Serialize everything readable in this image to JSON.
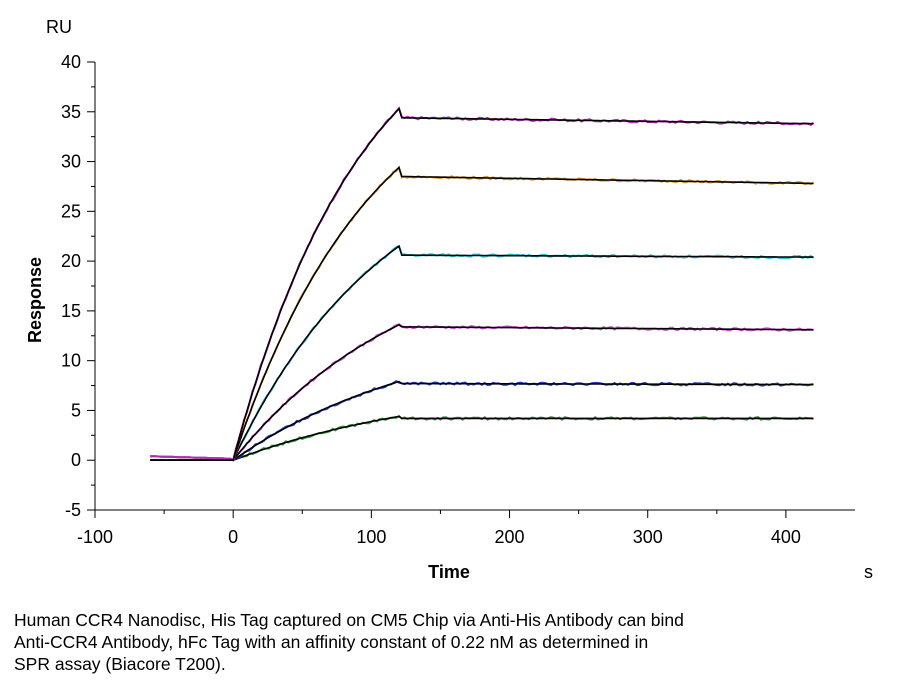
{
  "chart_data": {
    "type": "line",
    "xlabel": "Time",
    "x_unit": "s",
    "ylabel": "Response",
    "y_unit": "RU",
    "xlim": [
      -100,
      450
    ],
    "ylim": [
      -5,
      40
    ],
    "x_ticks": [
      -100,
      0,
      100,
      200,
      300,
      400
    ],
    "y_ticks": [
      -5,
      0,
      5,
      10,
      15,
      20,
      25,
      30,
      35,
      40
    ],
    "association_end_time": 120,
    "fit_color": "#000000",
    "series": [
      {
        "color": "#2f9a38",
        "peak_response": 4.4,
        "end_response": 4.2
      },
      {
        "color": "#1f3fbf",
        "peak_response": 7.9,
        "end_response": 7.6
      },
      {
        "color": "#d24fd6",
        "peak_response": 13.6,
        "end_response": 13.1
      },
      {
        "color": "#2ec9d8",
        "peak_response": 21.5,
        "end_response": 20.4
      },
      {
        "color": "#e0a030",
        "peak_response": 29.4,
        "end_response": 27.8
      },
      {
        "color": "#b52ab8",
        "peak_response": 35.3,
        "end_response": 33.8
      }
    ]
  },
  "caption": {
    "line1": "Human CCR4 Nanodisc, His Tag captured on CM5 Chip via Anti-His Antibody can bind",
    "line2": "Anti-CCR4 Antibody, hFc Tag with an affinity constant of 0.22 nM as determined in",
    "line3": "SPR assay (Biacore T200)."
  }
}
